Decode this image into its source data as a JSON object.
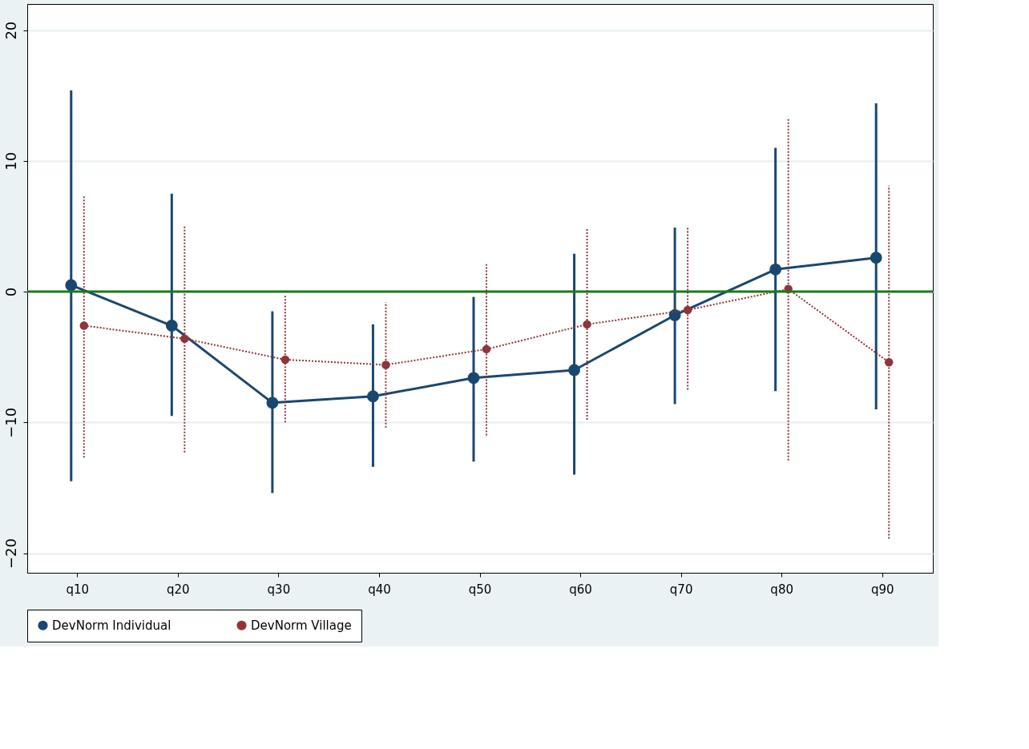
{
  "chart_data": {
    "type": "line",
    "categories": [
      "q10",
      "q20",
      "q30",
      "q40",
      "q50",
      "q60",
      "q70",
      "q80",
      "q90"
    ],
    "series": [
      {
        "name": "DevNorm Individual",
        "color": "#1a476f",
        "line_style": "solid",
        "marker": "circle",
        "values": [
          0.5,
          -2.6,
          -8.5,
          -8.0,
          -6.6,
          -6.0,
          -1.8,
          1.7,
          2.6
        ],
        "errors": [
          [
            -14.5,
            15.4
          ],
          [
            -9.5,
            7.5
          ],
          [
            -15.4,
            -1.5
          ],
          [
            -13.4,
            -2.5
          ],
          [
            -13.0,
            -0.4
          ],
          [
            -14.0,
            2.9
          ],
          [
            -8.6,
            4.9
          ],
          [
            -7.6,
            11.0
          ],
          [
            -9.0,
            14.4
          ]
        ]
      },
      {
        "name": "DevNorm Village",
        "color": "#90353b",
        "line_style": "dotted",
        "marker": "circle",
        "values": [
          -2.6,
          -3.6,
          -5.2,
          -5.6,
          -4.4,
          -2.5,
          -1.4,
          0.2,
          -5.4
        ],
        "errors": [
          [
            -12.7,
            7.3
          ],
          [
            -12.3,
            5.1
          ],
          [
            -10.0,
            -0.2
          ],
          [
            -10.4,
            -0.8
          ],
          [
            -11.0,
            2.1
          ],
          [
            -9.8,
            4.9
          ],
          [
            -7.5,
            4.9
          ],
          [
            -12.9,
            13.3
          ],
          [
            -18.9,
            8.1
          ]
        ]
      }
    ],
    "ylim": [
      -21.5,
      22
    ],
    "yticks": [
      -20,
      -10,
      0,
      10,
      20
    ],
    "grid": "y",
    "legend": "bottom",
    "ref_lines": [
      {
        "axis": "y",
        "value": 0,
        "color": "#1a7a1a",
        "line_style": "solid"
      }
    ]
  }
}
